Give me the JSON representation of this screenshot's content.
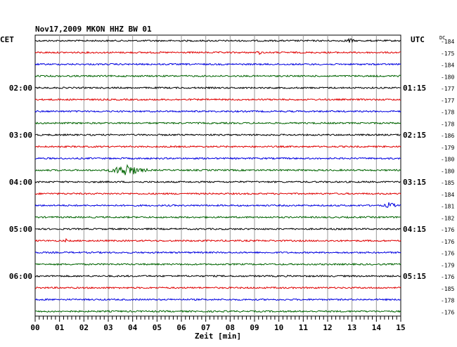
{
  "header": {
    "title": "Nov17,2009   MKON HHZ BW 01",
    "left_timezone": "CET",
    "right_timezone": "UTC",
    "dc_label": "DC"
  },
  "chart_data": {
    "type": "line",
    "title": "Nov17,2009   MKON HHZ BW 01",
    "xlabel": "Zeit [min]",
    "ylabel": "",
    "xlim": [
      0,
      15
    ],
    "x_ticks": [
      "00",
      "01",
      "02",
      "03",
      "04",
      "05",
      "06",
      "07",
      "08",
      "09",
      "10",
      "11",
      "12",
      "13",
      "14",
      "15"
    ],
    "left_time_labels": [
      {
        "trace": 4,
        "label": "02:00"
      },
      {
        "trace": 8,
        "label": "03:00"
      },
      {
        "trace": 12,
        "label": "04:00"
      },
      {
        "trace": 16,
        "label": "05:00"
      },
      {
        "trace": 20,
        "label": "06:00"
      }
    ],
    "right_time_labels": [
      {
        "trace": 4,
        "label": "01:15"
      },
      {
        "trace": 8,
        "label": "02:15"
      },
      {
        "trace": 12,
        "label": "03:15"
      },
      {
        "trace": 16,
        "label": "04:15"
      },
      {
        "trace": 20,
        "label": "05:15"
      }
    ],
    "dc_offsets": [
      -184,
      -175,
      -184,
      -180,
      -177,
      -177,
      -178,
      -178,
      -186,
      -179,
      -180,
      -180,
      -185,
      -184,
      -181,
      -182,
      -176,
      -176,
      -176,
      -179,
      -176,
      -185,
      -178,
      -176
    ],
    "trace_colors": [
      "#000000",
      "#e00000",
      "#0000e0",
      "#006400"
    ],
    "events": [
      {
        "trace": 0,
        "start_min": 12.6,
        "end_min": 13.2,
        "amplitude": 4
      },
      {
        "trace": 1,
        "start_min": 9.0,
        "end_min": 9.4,
        "amplitude": 3
      },
      {
        "trace": 11,
        "start_min": 2.9,
        "end_min": 4.6,
        "amplitude": 9
      },
      {
        "trace": 14,
        "start_min": 14.2,
        "end_min": 14.9,
        "amplitude": 5
      },
      {
        "trace": 17,
        "start_min": 1.2,
        "end_min": 1.35,
        "amplitude": 3
      }
    ]
  }
}
